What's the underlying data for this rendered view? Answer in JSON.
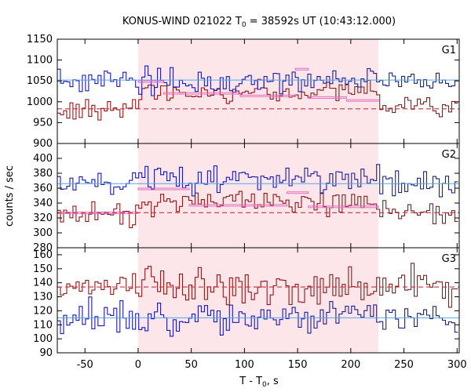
{
  "chart_data": {
    "type": "line",
    "title": "KONUS-WIND 021022 T",
    "title_sub": "0",
    "title_rest": " = 38592s UT (10:43:12.000)",
    "ylabel": "counts / sec",
    "xlabel_main": "T - T",
    "xlabel_sub": "0",
    "xlabel_unit": ", s",
    "xlim": [
      -76,
      302
    ],
    "x_ticks": [
      -50,
      0,
      50,
      100,
      150,
      200,
      250,
      300
    ],
    "x_tick_labels": [
      "-50",
      "0",
      "50",
      "100",
      "150",
      "200",
      "250",
      "300"
    ],
    "shaded_interval": [
      0,
      226
    ],
    "bin_width": 2.944,
    "colors": {
      "series_a": "#1a1aa8",
      "series_b": "#8b1a1a",
      "fit_a": "#4fa8e8",
      "fit_b": "#c8303a",
      "step_b": "#e070c0",
      "shade": "#fde6ea"
    },
    "panels": [
      {
        "label": "G1",
        "ylim": [
          900,
          1150
        ],
        "y_ticks": [
          900,
          950,
          1000,
          1050,
          1100,
          1150
        ],
        "y_tick_labels": [
          "900",
          "950",
          "1000",
          "1050",
          "1100",
          "1150"
        ],
        "series_a_level": 1050,
        "series_a_sd": 18,
        "series_b_level": 983,
        "series_b_sd": 17,
        "series_b_burst_level": 1025,
        "fit_a_level": 1052,
        "fit_b_level": 983,
        "step_b": [
          {
            "x0": 0,
            "x1": 24,
            "y": 1050
          },
          {
            "x0": 24,
            "x1": 96,
            "y": 1022
          },
          {
            "x0": 96,
            "x1": 148,
            "y": 1016
          },
          {
            "x0": 148,
            "x1": 160,
            "y": 1080
          },
          {
            "x0": 160,
            "x1": 196,
            "y": 1012
          },
          {
            "x0": 196,
            "x1": 226,
            "y": 1005
          }
        ]
      },
      {
        "label": "G2",
        "ylim": [
          280,
          420
        ],
        "y_ticks": [
          280,
          300,
          320,
          340,
          360,
          380,
          400
        ],
        "y_tick_labels": [
          "280",
          "300",
          "320",
          "340",
          "360",
          "380",
          "400"
        ],
        "series_a_level": 366,
        "series_a_sd": 11,
        "series_a_burst_level": 372,
        "series_b_level": 328,
        "series_b_sd": 10,
        "series_b_burst_level": 340,
        "fit_a_level": 366,
        "fit_b_level": 327,
        "step_b": [
          {
            "x0": -76,
            "x1": 0,
            "y": 328
          },
          {
            "x0": 0,
            "x1": 48,
            "y": 360
          },
          {
            "x0": 48,
            "x1": 140,
            "y": 338
          },
          {
            "x0": 140,
            "x1": 160,
            "y": 355
          },
          {
            "x0": 160,
            "x1": 226,
            "y": 336
          }
        ]
      },
      {
        "label": "G3",
        "ylim": [
          90,
          165
        ],
        "y_ticks": [
          90,
          100,
          110,
          120,
          130,
          140,
          150,
          160
        ],
        "y_tick_labels": [
          "90",
          "100",
          "110",
          "120",
          "130",
          "140",
          "150",
          "160"
        ],
        "series_a_level": 115,
        "series_a_sd": 7,
        "series_b_level": 137,
        "series_b_sd": 8,
        "fit_a_level": 115,
        "fit_b_level": 137
      }
    ]
  }
}
